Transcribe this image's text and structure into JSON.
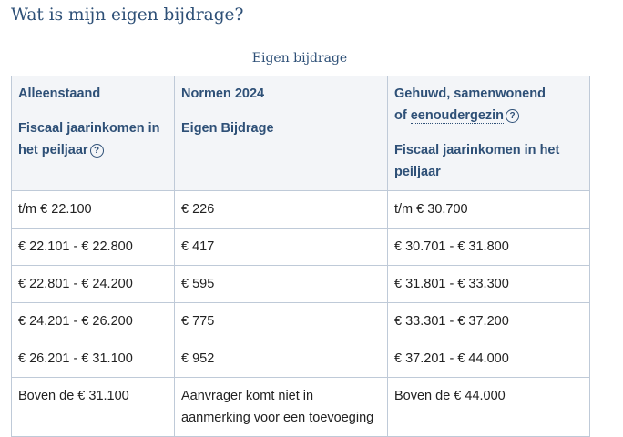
{
  "page": {
    "heading": "Wat is mijn eigen bijdrage?"
  },
  "table": {
    "caption": "Eigen bijdrage",
    "headers": {
      "col1_title": "Alleenstaand",
      "col1_sub_prefix": "Fiscaal jaarinkomen in het ",
      "col1_sub_term": "peiljaar",
      "col2_title": "Normen 2024",
      "col2_sub": "Eigen Bijdrage",
      "col3_title_line1": "Gehuwd, samenwonend",
      "col3_title_prefix": "of ",
      "col3_title_term": "eenoudergezin",
      "col3_sub": "Fiscaal jaarinkomen in het peiljaar"
    },
    "help_glyph": "?",
    "rows": [
      [
        "t/m € 22.100",
        "€ 226",
        "t/m € 30.700"
      ],
      [
        "€ 22.101 - € 22.800",
        "€ 417",
        "€ 30.701 - € 31.800"
      ],
      [
        "€ 22.801 - € 24.200",
        "€ 595",
        "€ 31.801 - € 33.300"
      ],
      [
        "€ 24.201 - € 26.200",
        "€ 775",
        "€ 33.301 - € 37.200"
      ],
      [
        "€ 26.201 - € 31.100",
        "€ 952",
        "€ 37.201 - € 44.000"
      ],
      [
        "Boven de € 31.100",
        "Aanvrager komt niet in aanmerking voor een toevoeging",
        "Boven de € 44.000"
      ]
    ]
  },
  "colors": {
    "heading": "#2e5077",
    "header_bg": "#f3f5f8",
    "border": "#bfcad8"
  }
}
